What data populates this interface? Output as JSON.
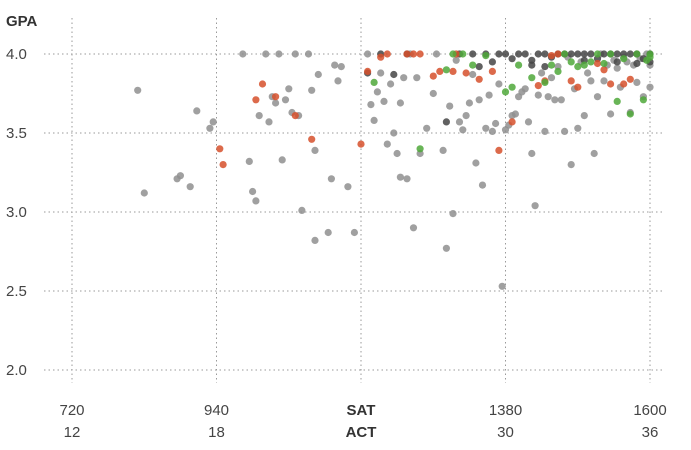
{
  "chart_data": {
    "type": "scatter",
    "ylabel": "GPA",
    "xlabel": "SAT",
    "xlabel_secondary": "ACT",
    "y_ticks": [
      "4.0",
      "3.5",
      "3.0",
      "2.5",
      "2.0"
    ],
    "y_tick_values": [
      4.0,
      3.5,
      3.0,
      2.5,
      2.0
    ],
    "x_ticks": [
      {
        "value": 720,
        "sat": "720",
        "act": "12"
      },
      {
        "value": 940,
        "sat": "940",
        "act": "18"
      },
      {
        "value": 1380,
        "sat": "1380",
        "act": "30"
      },
      {
        "value": 1600,
        "sat": "1600",
        "act": "36"
      }
    ],
    "x_grid": [
      720,
      940,
      1160,
      1380,
      1600
    ],
    "xlim": [
      680,
      1620
    ],
    "ylim": [
      1.95,
      4.1
    ],
    "grid": true,
    "colors": {
      "gray": "#8f8f8f",
      "dark": "#454545",
      "red": "#d6502b",
      "green": "#4fa83a"
    },
    "series": [
      {
        "color_key": "gray",
        "points": [
          [
            820,
            3.77
          ],
          [
            830,
            3.12
          ],
          [
            880,
            3.21
          ],
          [
            885,
            3.23
          ],
          [
            900,
            3.16
          ],
          [
            910,
            3.64
          ],
          [
            930,
            3.53
          ],
          [
            935,
            3.57
          ],
          [
            980,
            4.0
          ],
          [
            990,
            3.32
          ],
          [
            995,
            3.13
          ],
          [
            1000,
            3.07
          ],
          [
            1005,
            3.61
          ],
          [
            1015,
            4.0
          ],
          [
            1020,
            3.57
          ],
          [
            1025,
            3.73
          ],
          [
            1030,
            3.69
          ],
          [
            1035,
            4.0
          ],
          [
            1040,
            3.33
          ],
          [
            1045,
            3.71
          ],
          [
            1050,
            3.78
          ],
          [
            1055,
            3.63
          ],
          [
            1060,
            4.0
          ],
          [
            1065,
            3.61
          ],
          [
            1070,
            3.01
          ],
          [
            1080,
            4.0
          ],
          [
            1085,
            3.77
          ],
          [
            1090,
            3.39
          ],
          [
            1090,
            2.82
          ],
          [
            1095,
            3.87
          ],
          [
            1110,
            2.87
          ],
          [
            1115,
            3.21
          ],
          [
            1120,
            3.93
          ],
          [
            1125,
            3.83
          ],
          [
            1130,
            3.92
          ],
          [
            1140,
            3.16
          ],
          [
            1150,
            2.87
          ],
          [
            1170,
            4.0
          ],
          [
            1175,
            3.68
          ],
          [
            1180,
            3.58
          ],
          [
            1185,
            3.76
          ],
          [
            1190,
            3.88
          ],
          [
            1195,
            3.7
          ],
          [
            1200,
            3.43
          ],
          [
            1205,
            3.81
          ],
          [
            1210,
            3.5
          ],
          [
            1215,
            3.37
          ],
          [
            1220,
            3.22
          ],
          [
            1220,
            3.69
          ],
          [
            1225,
            3.85
          ],
          [
            1230,
            3.21
          ],
          [
            1235,
            4.0
          ],
          [
            1240,
            2.9
          ],
          [
            1245,
            3.85
          ],
          [
            1250,
            3.37
          ],
          [
            1260,
            3.53
          ],
          [
            1270,
            3.75
          ],
          [
            1275,
            4.0
          ],
          [
            1285,
            3.39
          ],
          [
            1290,
            2.77
          ],
          [
            1295,
            3.67
          ],
          [
            1300,
            2.99
          ],
          [
            1305,
            3.96
          ],
          [
            1310,
            3.57
          ],
          [
            1315,
            3.52
          ],
          [
            1320,
            3.61
          ],
          [
            1325,
            3.69
          ],
          [
            1330,
            3.87
          ],
          [
            1335,
            3.31
          ],
          [
            1340,
            3.71
          ],
          [
            1345,
            3.17
          ],
          [
            1350,
            3.53
          ],
          [
            1355,
            3.74
          ],
          [
            1360,
            3.51
          ],
          [
            1365,
            3.56
          ],
          [
            1370,
            3.81
          ],
          [
            1375,
            2.53
          ],
          [
            1380,
            3.52
          ],
          [
            1385,
            3.55
          ],
          [
            1390,
            3.61
          ],
          [
            1395,
            3.62
          ],
          [
            1400,
            3.73
          ],
          [
            1405,
            3.76
          ],
          [
            1410,
            3.78
          ],
          [
            1415,
            3.57
          ],
          [
            1420,
            3.37
          ],
          [
            1425,
            3.04
          ],
          [
            1430,
            3.74
          ],
          [
            1435,
            3.88
          ],
          [
            1440,
            3.51
          ],
          [
            1445,
            3.73
          ],
          [
            1450,
            3.85
          ],
          [
            1455,
            3.71
          ],
          [
            1460,
            3.92
          ],
          [
            1465,
            3.71
          ],
          [
            1470,
            3.51
          ],
          [
            1475,
            3.98
          ],
          [
            1480,
            3.3
          ],
          [
            1485,
            3.78
          ],
          [
            1490,
            3.53
          ],
          [
            1495,
            3.95
          ],
          [
            1500,
            3.61
          ],
          [
            1505,
            3.88
          ],
          [
            1510,
            3.83
          ],
          [
            1515,
            3.37
          ],
          [
            1520,
            3.73
          ],
          [
            1525,
            4.0
          ],
          [
            1530,
            3.83
          ],
          [
            1535,
            3.93
          ],
          [
            1540,
            3.62
          ],
          [
            1545,
            3.96
          ],
          [
            1550,
            3.91
          ],
          [
            1555,
            3.79
          ],
          [
            1560,
            3.98
          ],
          [
            1565,
            3.95
          ],
          [
            1570,
            3.63
          ],
          [
            1575,
            3.93
          ],
          [
            1580,
            3.82
          ],
          [
            1585,
            3.97
          ],
          [
            1590,
            3.73
          ],
          [
            1595,
            4.0
          ],
          [
            1600,
            3.93
          ],
          [
            1600,
            3.79
          ]
        ]
      },
      {
        "color_key": "dark",
        "points": [
          [
            1170,
            3.88
          ],
          [
            1190,
            4.0
          ],
          [
            1210,
            3.87
          ],
          [
            1230,
            4.0
          ],
          [
            1290,
            3.57
          ],
          [
            1310,
            4.0
          ],
          [
            1330,
            4.0
          ],
          [
            1340,
            3.92
          ],
          [
            1350,
            4.0
          ],
          [
            1360,
            3.95
          ],
          [
            1370,
            4.0
          ],
          [
            1380,
            4.0
          ],
          [
            1390,
            3.97
          ],
          [
            1400,
            4.0
          ],
          [
            1410,
            4.0
          ],
          [
            1420,
            3.96
          ],
          [
            1430,
            4.0
          ],
          [
            1440,
            4.0
          ],
          [
            1450,
            3.98
          ],
          [
            1460,
            4.0
          ],
          [
            1470,
            4.0
          ],
          [
            1480,
            4.0
          ],
          [
            1490,
            4.0
          ],
          [
            1500,
            4.0
          ],
          [
            1510,
            4.0
          ],
          [
            1520,
            3.97
          ],
          [
            1530,
            4.0
          ],
          [
            1540,
            4.0
          ],
          [
            1550,
            4.0
          ],
          [
            1560,
            4.0
          ],
          [
            1570,
            4.0
          ],
          [
            1580,
            4.0
          ],
          [
            1590,
            3.97
          ],
          [
            1600,
            4.0
          ],
          [
            1600,
            3.95
          ],
          [
            1420,
            3.93
          ],
          [
            1440,
            3.92
          ],
          [
            1500,
            3.96
          ],
          [
            1550,
            3.95
          ],
          [
            1580,
            3.94
          ]
        ]
      },
      {
        "color_key": "red",
        "points": [
          [
            945,
            3.4
          ],
          [
            950,
            3.3
          ],
          [
            1000,
            3.71
          ],
          [
            1010,
            3.81
          ],
          [
            1030,
            3.73
          ],
          [
            1060,
            3.61
          ],
          [
            1085,
            3.46
          ],
          [
            1160,
            3.43
          ],
          [
            1170,
            3.89
          ],
          [
            1190,
            3.98
          ],
          [
            1200,
            4.0
          ],
          [
            1230,
            4.0
          ],
          [
            1240,
            4.0
          ],
          [
            1250,
            4.0
          ],
          [
            1270,
            3.86
          ],
          [
            1280,
            3.89
          ],
          [
            1300,
            3.89
          ],
          [
            1305,
            4.0
          ],
          [
            1320,
            3.88
          ],
          [
            1340,
            3.84
          ],
          [
            1360,
            3.89
          ],
          [
            1370,
            3.39
          ],
          [
            1390,
            3.57
          ],
          [
            1430,
            3.8
          ],
          [
            1440,
            3.83
          ],
          [
            1460,
            4.0
          ],
          [
            1480,
            3.83
          ],
          [
            1490,
            3.79
          ],
          [
            1520,
            3.94
          ],
          [
            1530,
            3.9
          ],
          [
            1540,
            3.81
          ],
          [
            1560,
            3.81
          ],
          [
            1570,
            3.84
          ],
          [
            1450,
            3.99
          ]
        ]
      },
      {
        "color_key": "green",
        "points": [
          [
            1180,
            3.82
          ],
          [
            1250,
            3.4
          ],
          [
            1290,
            3.9
          ],
          [
            1300,
            4.0
          ],
          [
            1315,
            4.0
          ],
          [
            1330,
            3.93
          ],
          [
            1350,
            3.99
          ],
          [
            1380,
            3.76
          ],
          [
            1390,
            3.79
          ],
          [
            1400,
            3.93
          ],
          [
            1420,
            3.85
          ],
          [
            1440,
            3.82
          ],
          [
            1450,
            3.93
          ],
          [
            1460,
            3.89
          ],
          [
            1470,
            4.0
          ],
          [
            1480,
            3.95
          ],
          [
            1490,
            3.92
          ],
          [
            1500,
            3.93
          ],
          [
            1510,
            3.95
          ],
          [
            1520,
            4.0
          ],
          [
            1530,
            3.94
          ],
          [
            1540,
            4.0
          ],
          [
            1550,
            3.7
          ],
          [
            1560,
            3.97
          ],
          [
            1570,
            3.62
          ],
          [
            1580,
            4.0
          ],
          [
            1590,
            3.71
          ],
          [
            1600,
            4.0
          ],
          [
            1600,
            3.98
          ],
          [
            1595,
            3.96
          ]
        ]
      }
    ]
  }
}
